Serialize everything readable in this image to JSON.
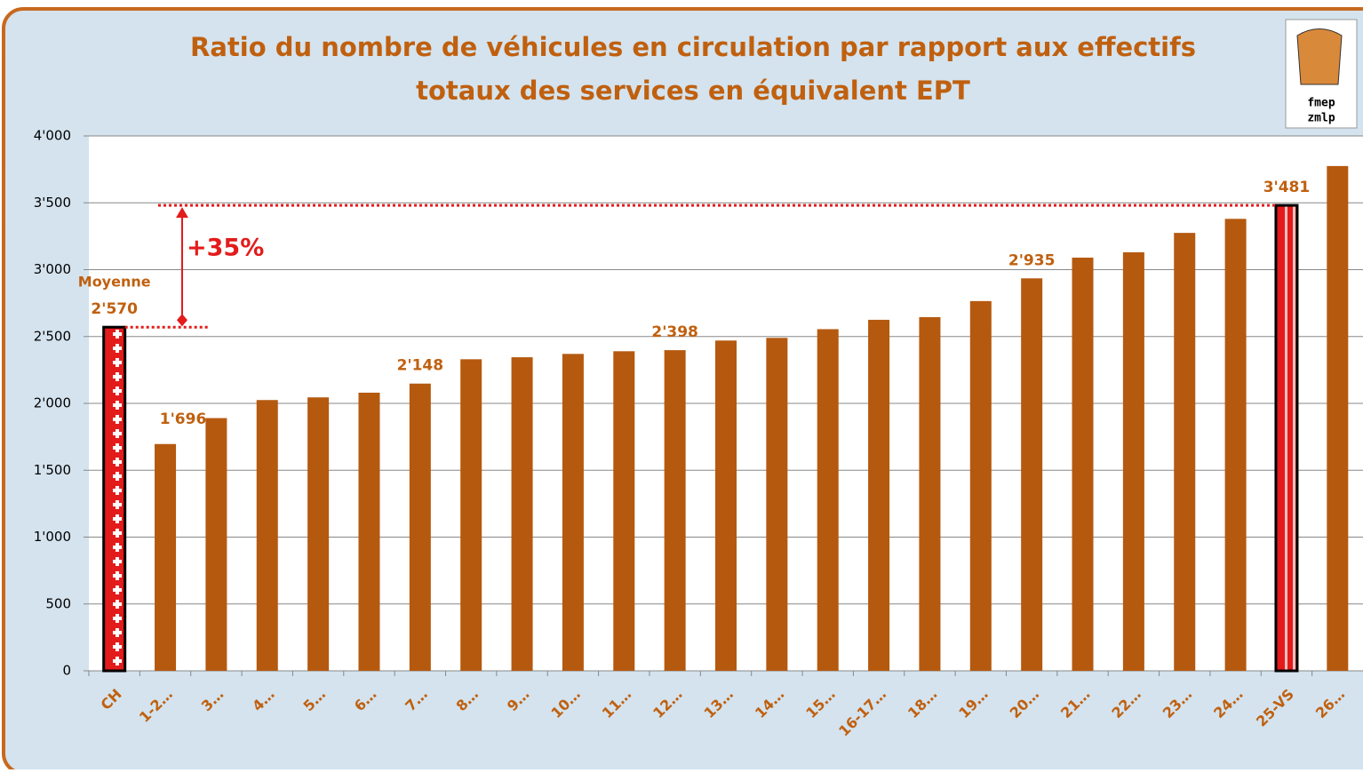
{
  "chart_data": {
    "type": "bar",
    "title": [
      "Ratio du nombre de véhicules en circulation par rapport aux effectifs",
      "totaux des services en équivalent EPT"
    ],
    "logo": [
      "fmep",
      "zmlp"
    ],
    "categories": [
      "CH",
      "1-2…",
      "3…",
      "4…",
      "5…",
      "6…",
      "7…",
      "8…",
      "9…",
      "10…",
      "11…",
      "12…",
      "13…",
      "14…",
      "15…",
      "16-17…",
      "18…",
      "19…",
      "20…",
      "21…",
      "22…",
      "23…",
      "24…",
      "25-VS",
      "26…"
    ],
    "values": [
      2570,
      1696,
      1890,
      2025,
      2045,
      2080,
      2148,
      2330,
      2345,
      2370,
      2390,
      2398,
      2470,
      2490,
      2555,
      2625,
      2645,
      2765,
      2935,
      3090,
      3130,
      3275,
      3380,
      3481,
      3775
    ],
    "value_labels": [
      "2'570",
      "1'696",
      null,
      null,
      null,
      null,
      "2'148",
      null,
      null,
      null,
      null,
      "2'398",
      null,
      null,
      null,
      null,
      null,
      null,
      "2'935",
      null,
      null,
      null,
      null,
      "3'481",
      null
    ],
    "color": "#b5590f",
    "patterns": {
      "0": "swiss",
      "23": "valais"
    },
    "annotations": [
      "Moyenne",
      "+35%"
    ],
    "ylim": [
      0,
      4000
    ],
    "yticks": [
      0,
      500,
      {
        "value": 1000,
        "label": "1'000"
      },
      {
        "value": 1500,
        "label": "1'500"
      },
      {
        "value": 2000,
        "label": "2'000"
      },
      {
        "value": 2500,
        "label": "2'500"
      },
      {
        "value": 3000,
        "label": "3'000"
      },
      {
        "value": 3500,
        "label": "3'500"
      },
      {
        "value": 4000,
        "label": "4'000"
      }
    ],
    "grid": true
  }
}
